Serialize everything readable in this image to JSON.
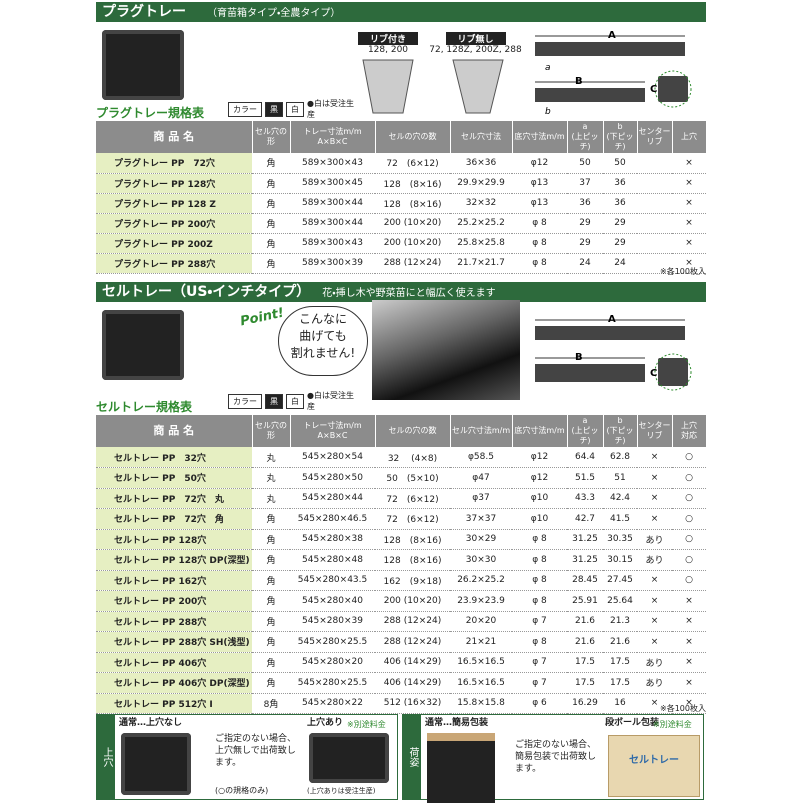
{
  "plug": {
    "title": "プラグトレー",
    "subtitle": "（育苗箱タイプ・全農タイプ）",
    "rib_on": "リブ付き",
    "rib_on_sizes": "128, 200",
    "rib_off": "リブ無し",
    "rib_off_sizes": "72, 128Z, 200Z, 288",
    "spec_title": "プラグトレー規格表",
    "legend": {
      "label": "カラー",
      "black": "黒",
      "white": "白",
      "note": "●白は受注生産"
    },
    "dims": [
      "A",
      "B",
      "C",
      "a",
      "b"
    ],
    "headers": [
      [
        "商 品 名"
      ],
      [
        "セル穴の",
        "形"
      ],
      [
        "トレー寸法m/m",
        "A×B×C"
      ],
      [
        "セルの穴の数"
      ],
      [
        "セル穴寸法"
      ],
      [
        "底穴寸法m/m"
      ],
      [
        "a",
        "(上ピッチ)"
      ],
      [
        "b",
        "(下ピッチ)"
      ],
      [
        "センター",
        "リブ"
      ],
      [
        "上穴"
      ]
    ],
    "rows": [
      [
        "プラグトレー PP　72穴",
        "角",
        "589×300×43",
        "72　(6×12)",
        "36×36",
        "φ12",
        "50",
        "50",
        null,
        "×"
      ],
      [
        "プラグトレー PP 128穴",
        "角",
        "589×300×45",
        "128　(8×16)",
        "29.9×29.9",
        "φ13",
        "37",
        "36",
        null,
        "×"
      ],
      [
        "プラグトレー PP 128 Z",
        "角",
        "589×300×44",
        "128　(8×16)",
        "32×32",
        "φ13",
        "36",
        "36",
        null,
        "×"
      ],
      [
        "プラグトレー PP 200穴",
        "角",
        "589×300×44",
        "200 (10×20)",
        "25.2×25.2",
        "φ 8",
        "29",
        "29",
        null,
        "×"
      ],
      [
        "プラグトレー PP 200Z",
        "角",
        "589×300×43",
        "200 (10×20)",
        "25.8×25.8",
        "φ 8",
        "29",
        "29",
        null,
        "×"
      ],
      [
        "プラグトレー PP 288穴",
        "角",
        "589×300×39",
        "288 (12×24)",
        "21.7×21.7",
        "φ 8",
        "24",
        "24",
        null,
        "×"
      ]
    ],
    "note": "※各100枚入"
  },
  "cell": {
    "title": "セルトレー（US・インチタイプ）",
    "subtitle": "花・挿し木や野菜苗にと幅広く使えます",
    "point": "Point!",
    "point_text": [
      "こんなに",
      "曲げても",
      "割れません!"
    ],
    "spec_title": "セルトレー規格表",
    "legend": {
      "label": "カラー",
      "black": "黒",
      "white": "白",
      "note": "●白は受注生産"
    },
    "dims": [
      "A",
      "B",
      "C"
    ],
    "headers": [
      [
        "商 品 名"
      ],
      [
        "セル穴の",
        "形"
      ],
      [
        "トレー寸法m/m",
        "A×B×C"
      ],
      [
        "セルの穴の数"
      ],
      [
        "セル穴寸法m/m"
      ],
      [
        "底穴寸法m/m"
      ],
      [
        "a",
        "(上ピッチ)"
      ],
      [
        "b",
        "(下ピッチ)"
      ],
      [
        "センター",
        "リブ"
      ],
      [
        "上穴",
        "対応"
      ]
    ],
    "rows": [
      [
        "セルトレー PP　32穴",
        "丸",
        "545×280×54",
        "32　 (4×8)",
        "φ58.5",
        "φ12",
        "64.4",
        "62.8",
        "×",
        "○"
      ],
      [
        "セルトレー PP　50穴",
        "丸",
        "545×280×50",
        "50　(5×10)",
        "φ47",
        "φ12",
        "51.5",
        "51",
        "×",
        "○"
      ],
      [
        "セルトレー PP　72穴　丸",
        "丸",
        "545×280×44",
        "72　(6×12)",
        "φ37",
        "φ10",
        "43.3",
        "42.4",
        "×",
        "○"
      ],
      [
        "セルトレー PP　72穴　角",
        "角",
        "545×280×46.5",
        "72　(6×12)",
        "37×37",
        "φ10",
        "42.7",
        "41.5",
        "×",
        "○"
      ],
      [
        "セルトレー PP 128穴",
        "角",
        "545×280×38",
        "128　(8×16)",
        "30×29",
        "φ 8",
        "31.25",
        "30.35",
        "あり",
        "○"
      ],
      [
        "セルトレー PP 128穴 DP(深型)",
        "角",
        "545×280×48",
        "128　(8×16)",
        "30×30",
        "φ 8",
        "31.25",
        "30.15",
        "あり",
        "○"
      ],
      [
        "セルトレー PP 162穴",
        "角",
        "545×280×43.5",
        "162　(9×18)",
        "26.2×25.2",
        "φ 8",
        "28.45",
        "27.45",
        "×",
        "○"
      ],
      [
        "セルトレー PP 200穴",
        "角",
        "545×280×40",
        "200 (10×20)",
        "23.9×23.9",
        "φ 8",
        "25.91",
        "25.64",
        "×",
        "×"
      ],
      [
        "セルトレー PP 288穴",
        "角",
        "545×280×39",
        "288 (12×24)",
        "20×20",
        "φ 7",
        "21.6",
        "21.3",
        "×",
        "×"
      ],
      [
        "セルトレー PP 288穴 SH(浅型)",
        "角",
        "545×280×25.5",
        "288 (12×24)",
        "21×21",
        "φ 8",
        "21.6",
        "21.6",
        "×",
        "×"
      ],
      [
        "セルトレー PP 406穴",
        "角",
        "545×280×20",
        "406 (14×29)",
        "16.5×16.5",
        "φ 7",
        "17.5",
        "17.5",
        "あり",
        "×"
      ],
      [
        "セルトレー PP 406穴 DP(深型)",
        "角",
        "545×280×25.5",
        "406 (14×29)",
        "16.5×16.5",
        "φ 7",
        "17.5",
        "17.5",
        "あり",
        "×"
      ],
      [
        "セルトレー PP 512穴 Ⅰ",
        "8角",
        "545×280×22",
        "512 (16×32)",
        "15.8×15.8",
        "φ 6",
        "16.29",
        "16",
        "×",
        "×"
      ]
    ],
    "note": "※各100枚入"
  },
  "footer": {
    "hole_label": "上穴",
    "hole_normal": "通常…上穴なし",
    "hole_text": "ご指定のない場合、上穴無しで出荷致します。",
    "hole_only": "(○の規格のみ)",
    "hole_on": "上穴あり",
    "hole_fee": "※別途料金",
    "hole_order": "(上穴ありは受注生産)",
    "pack_label": "荷姿",
    "pack_normal": "通常…簡易包装",
    "pack_text": "ご指定のない場合、簡易包装で出荷致します。",
    "pack_box": "段ボール包装",
    "pack_fee": "※別途料金",
    "pack_box_print": "セルトレー"
  }
}
